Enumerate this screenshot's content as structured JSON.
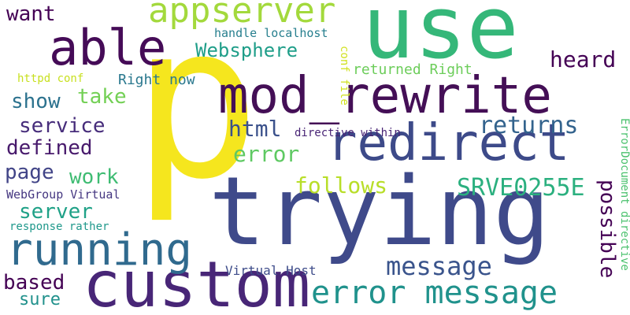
{
  "words": [
    {
      "text": "p",
      "color": "#f5e61e"
    },
    {
      "text": "trying",
      "color": "#3f4a8a"
    },
    {
      "text": "use",
      "color": "#35b779"
    },
    {
      "text": "custom",
      "color": "#482677"
    },
    {
      "text": "mod_rewrite",
      "color": "#440f56"
    },
    {
      "text": "redirect",
      "color": "#3d4a89"
    },
    {
      "text": "able",
      "color": "#450b57"
    },
    {
      "text": "running",
      "color": "#306a8e"
    },
    {
      "text": "appserver",
      "color": "#a3d93c"
    },
    {
      "text": "error message",
      "color": "#20928c"
    },
    {
      "text": "message",
      "color": "#3a548c"
    },
    {
      "text": "SRVE0255E",
      "color": "#2bb07f"
    },
    {
      "text": "Websphere",
      "color": "#1f9e89"
    },
    {
      "text": "returns",
      "color": "#33638d"
    },
    {
      "text": "heard",
      "color": "#440154"
    },
    {
      "text": "html",
      "color": "#3b518b"
    },
    {
      "text": "error",
      "color": "#5ec962"
    },
    {
      "text": "follows",
      "color": "#b8de29"
    },
    {
      "text": "want",
      "color": "#440154"
    },
    {
      "text": "show",
      "color": "#2c728e"
    },
    {
      "text": "take",
      "color": "#73d055"
    },
    {
      "text": "service",
      "color": "#472d7b"
    },
    {
      "text": "defined",
      "color": "#481a6c"
    },
    {
      "text": "page",
      "color": "#414487"
    },
    {
      "text": "work",
      "color": "#3fbc73"
    },
    {
      "text": "server",
      "color": "#1fa187"
    },
    {
      "text": "based",
      "color": "#440154"
    },
    {
      "text": "sure",
      "color": "#21918c"
    },
    {
      "text": "Right now",
      "color": "#2a788e"
    },
    {
      "text": "returned Right",
      "color": "#6ccd5a"
    },
    {
      "text": "Virtual Host",
      "color": "#3e4c8a"
    },
    {
      "text": "handle localhost",
      "color": "#277f8e"
    },
    {
      "text": "directive within",
      "color": "#482475"
    },
    {
      "text": "WebGroup Virtual",
      "color": "#453781"
    },
    {
      "text": "response rather",
      "color": "#1f988b"
    },
    {
      "text": "httpd conf",
      "color": "#c8e020"
    },
    {
      "text": "possible",
      "color": "#440154"
    },
    {
      "text": "ErrorDocument directive",
      "color": "#4ac16d"
    },
    {
      "text": "conf file",
      "color": "#d0e11c"
    }
  ]
}
